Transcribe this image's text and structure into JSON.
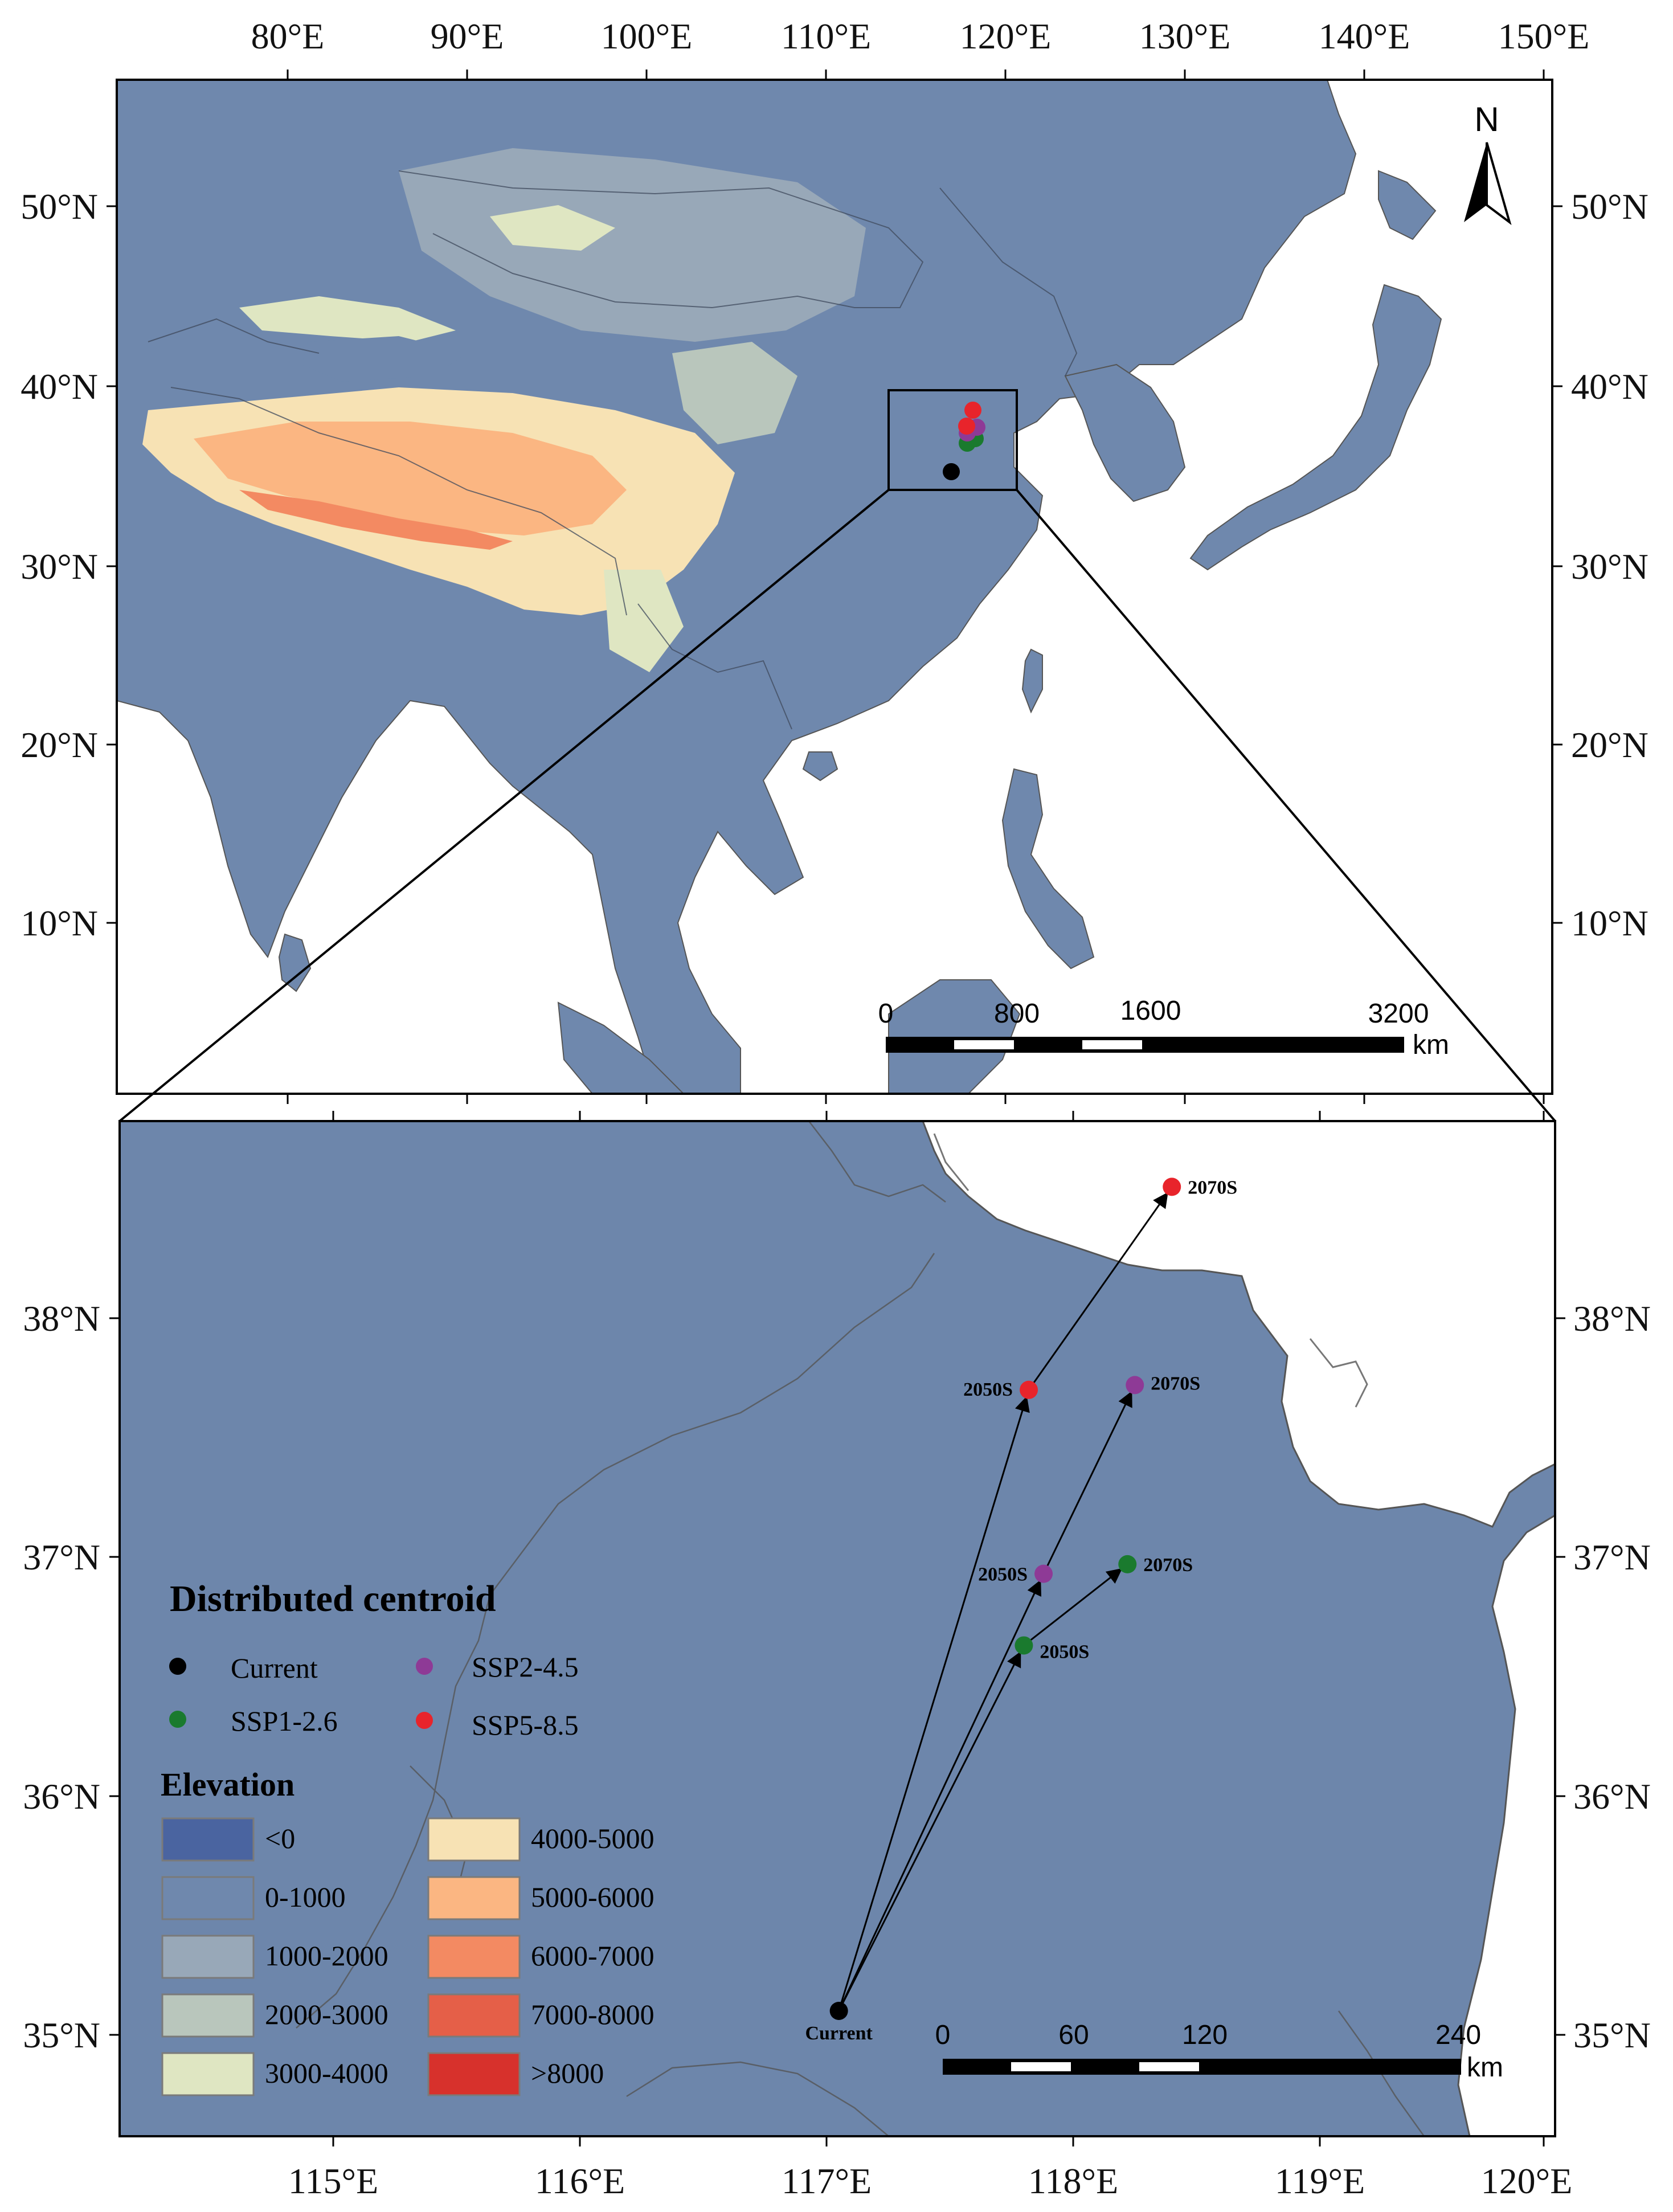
{
  "top_map": {
    "lon_labels": [
      "80°E",
      "90°E",
      "100°E",
      "110°E",
      "120°E",
      "130°E",
      "140°E",
      "150°E"
    ],
    "lat_labels": [
      "50°N",
      "40°N",
      "30°N",
      "20°N",
      "10°N"
    ],
    "north_label": "N",
    "scale": {
      "labels": [
        "0",
        "800",
        "1600",
        "3200"
      ],
      "unit": "km"
    }
  },
  "inset_map": {
    "lon_labels": [
      "115°E",
      "116°E",
      "117°E",
      "118°E",
      "119°E",
      "120°E"
    ],
    "lat_labels": [
      "38°N",
      "37°N",
      "36°N",
      "35°N"
    ],
    "scale": {
      "labels": [
        "0",
        "60",
        "120",
        "240"
      ],
      "unit": "km"
    }
  },
  "centroids": [
    {
      "label": "Current",
      "lon": 117.05,
      "lat": 35.1,
      "color": "#000000"
    },
    {
      "label": "2050S",
      "scenario": "SSP1-2.6",
      "lon": 117.8,
      "lat": 36.63,
      "color": "#1a7a2e"
    },
    {
      "label": "2070S",
      "scenario": "SSP1-2.6",
      "lon": 118.22,
      "lat": 36.97,
      "color": "#1a7a2e"
    },
    {
      "label": "2050S",
      "scenario": "SSP2-4.5",
      "lon": 117.88,
      "lat": 36.93,
      "color": "#8e3a96"
    },
    {
      "label": "2070S",
      "scenario": "SSP2-4.5",
      "lon": 118.25,
      "lat": 37.72,
      "color": "#8e3a96"
    },
    {
      "label": "2050S",
      "scenario": "SSP5-8.5",
      "lon": 117.82,
      "lat": 37.7,
      "color": "#e8242b"
    },
    {
      "label": "2070S",
      "scenario": "SSP5-8.5",
      "lon": 118.4,
      "lat": 38.55,
      "color": "#e8242b"
    }
  ],
  "legend": {
    "centroid_title": "Distributed centroid",
    "centroid_items": [
      {
        "label": "Current",
        "color": "#000000"
      },
      {
        "label": "SSP1-2.6",
        "color": "#1a7a2e"
      },
      {
        "label": "SSP2-4.5",
        "color": "#8e3a96"
      },
      {
        "label": "SSP5-8.5",
        "color": "#e8242b"
      }
    ],
    "elevation_title": "Elevation",
    "elevation_items": [
      {
        "label": "<0",
        "color": "#4a64a0"
      },
      {
        "label": "0-1000",
        "color": "#6f88ad"
      },
      {
        "label": "1000-2000",
        "color": "#98a8b8"
      },
      {
        "label": "2000-3000",
        "color": "#b9c6bc"
      },
      {
        "label": "3000-4000",
        "color": "#dfe6c2"
      },
      {
        "label": "4000-5000",
        "color": "#f7e2b4"
      },
      {
        "label": "5000-6000",
        "color": "#fbb682"
      },
      {
        "label": "6000-7000",
        "color": "#f38a62"
      },
      {
        "label": "7000-8000",
        "color": "#e55f48"
      },
      {
        "label": ">8000",
        "color": "#d7312c"
      }
    ]
  }
}
